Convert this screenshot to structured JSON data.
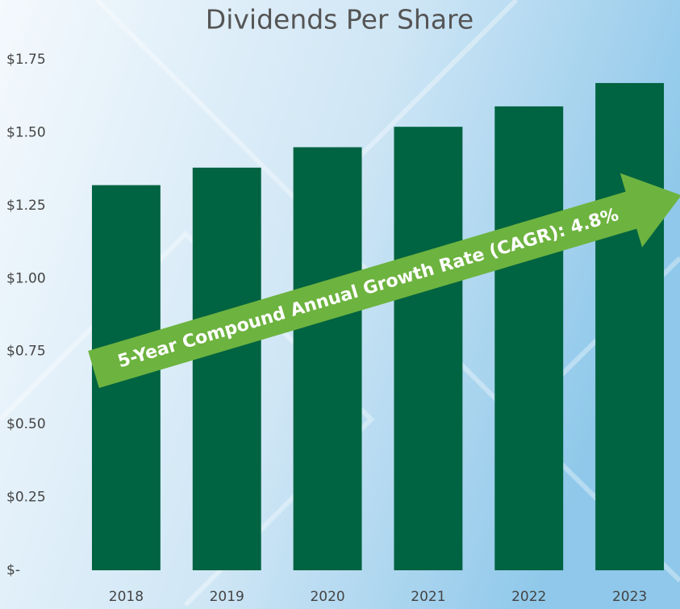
{
  "chart_data": {
    "type": "bar",
    "title": "Dividends Per Share",
    "categories": [
      "2018",
      "2019",
      "2020",
      "2021",
      "2022",
      "2023"
    ],
    "values": [
      1.32,
      1.38,
      1.45,
      1.52,
      1.59,
      1.67
    ],
    "color": "#006341",
    "ylim": [
      0,
      1.75
    ],
    "yticks": [
      {
        "value": 0,
        "label": "$-"
      },
      {
        "value": 0.25,
        "label": "$0.25"
      },
      {
        "value": 0.5,
        "label": "$0.50"
      },
      {
        "value": 0.75,
        "label": "$0.75"
      },
      {
        "value": 1,
        "label": "$1.00"
      },
      {
        "value": 1.25,
        "label": "$1.25"
      },
      {
        "value": 1.5,
        "label": "$1.50"
      },
      {
        "value": 1.75,
        "label": "$1.75"
      }
    ],
    "grid": false,
    "annotation": "5-Year Compound Annual Growth Rate (CAGR): 4.8%"
  }
}
